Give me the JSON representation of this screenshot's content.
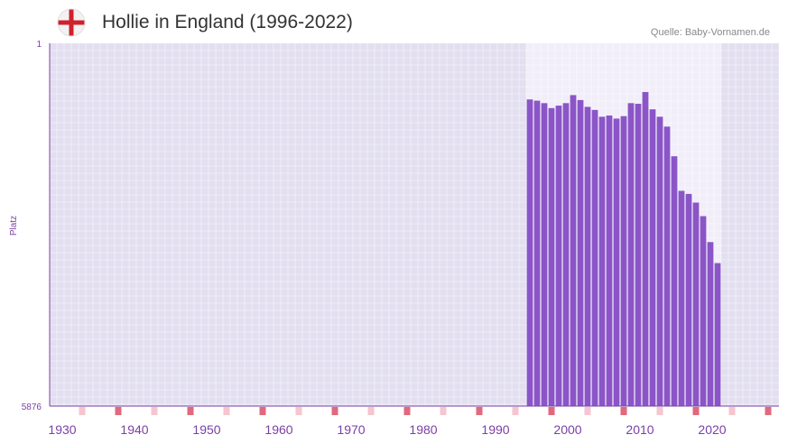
{
  "header": {
    "title": "Hollie in England (1996-2022)",
    "source": "Quelle: Baby-Vornamen.de",
    "flag_icon": "england-flag-icon"
  },
  "colors": {
    "plot_bg": "#e3dff0",
    "highlight_bg": "#f1eef9",
    "bar": "#8b55c8",
    "axis": "#7b3fa6",
    "tick_text": "#7b3fa6",
    "grid": "#ffffff",
    "marker_strong": "#e0697d",
    "marker_light": "#f5c6cf"
  },
  "chart_data": {
    "type": "bar",
    "title": "Hollie in England (1996-2022)",
    "xlabel": "",
    "ylabel": "Platz",
    "y_axis_reversed": true,
    "ylim": [
      1,
      5876
    ],
    "ytick_labels": [
      "1",
      "5876"
    ],
    "xlim": [
      1928.5,
      2029.5
    ],
    "xtick_labels": [
      "1930",
      "1940",
      "1950",
      "1960",
      "1970",
      "1980",
      "1990",
      "2000",
      "2010",
      "2020"
    ],
    "highlight_range": [
      1994.5,
      2021.5
    ],
    "x": [
      1995,
      1996,
      1997,
      1998,
      1999,
      2000,
      2001,
      2002,
      2003,
      2004,
      2005,
      2006,
      2007,
      2008,
      2009,
      2010,
      2011,
      2012,
      2013,
      2014,
      2015,
      2016,
      2017,
      2018,
      2019,
      2020,
      2021
    ],
    "values": [
      910,
      930,
      970,
      1050,
      1010,
      970,
      840,
      920,
      1030,
      1080,
      1190,
      1170,
      1220,
      1180,
      970,
      980,
      790,
      1070,
      1190,
      1350,
      1830,
      2390,
      2440,
      2580,
      2800,
      3220,
      3560
    ]
  }
}
